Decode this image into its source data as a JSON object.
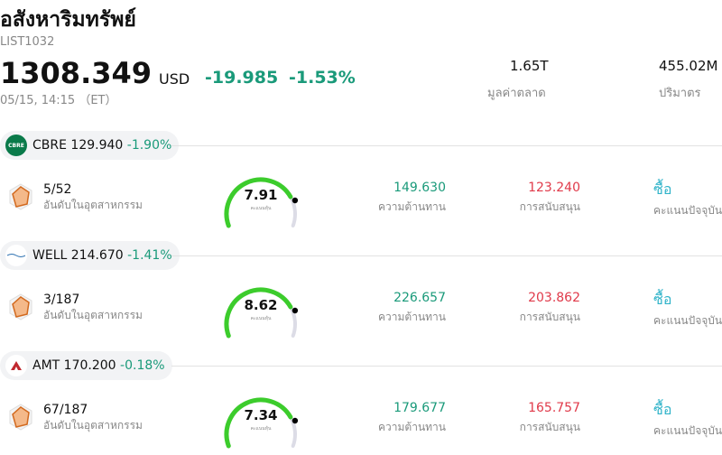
{
  "header": {
    "title": "อสังหาริมทรัพย์",
    "code": "LIST1032",
    "price": "1308.349",
    "currency": "USD",
    "change": "-19.985",
    "change_pct": "-1.53%",
    "time": "05/15, 14:15 （ET）"
  },
  "stats": [
    {
      "value": "1.65T",
      "label": "มูลค่าตลาด"
    },
    {
      "value": "455.02M",
      "label": "ปริมาตร"
    }
  ],
  "stocks": [
    {
      "ticker": "CBRE",
      "price": "129.940",
      "change": "-1.90%",
      "rank": "5/52",
      "rank_label": "อันดับในอุตสาหกรรม",
      "score": "7.91",
      "score_label": "คะแนนหุ้น",
      "resistance": "149.630",
      "resistance_label": "ความต้านทาน",
      "support": "123.240",
      "support_label": "การสนับสนุน",
      "action": "ซื้อ",
      "action_label": "คะแนนปัจจุบัน"
    },
    {
      "ticker": "WELL",
      "price": "214.670",
      "change": "-1.41%",
      "rank": "3/187",
      "rank_label": "อันดับในอุตสาหกรรม",
      "score": "8.62",
      "score_label": "คะแนนหุ้น",
      "resistance": "226.657",
      "resistance_label": "ความต้านทาน",
      "support": "203.862",
      "support_label": "การสนับสนุน",
      "action": "ซื้อ",
      "action_label": "คะแนนปัจจุบัน"
    },
    {
      "ticker": "AMT",
      "price": "170.200",
      "change": "-0.18%",
      "rank": "67/187",
      "rank_label": "อันดับในอุตสาหกรรม",
      "score": "7.34",
      "score_label": "คะแนนหุ้น",
      "resistance": "179.677",
      "resistance_label": "ความต้านทาน",
      "support": "165.757",
      "support_label": "การสนับสนุน",
      "action": "ซื้อ",
      "action_label": "คะแนนปัจจุบัน"
    }
  ]
}
